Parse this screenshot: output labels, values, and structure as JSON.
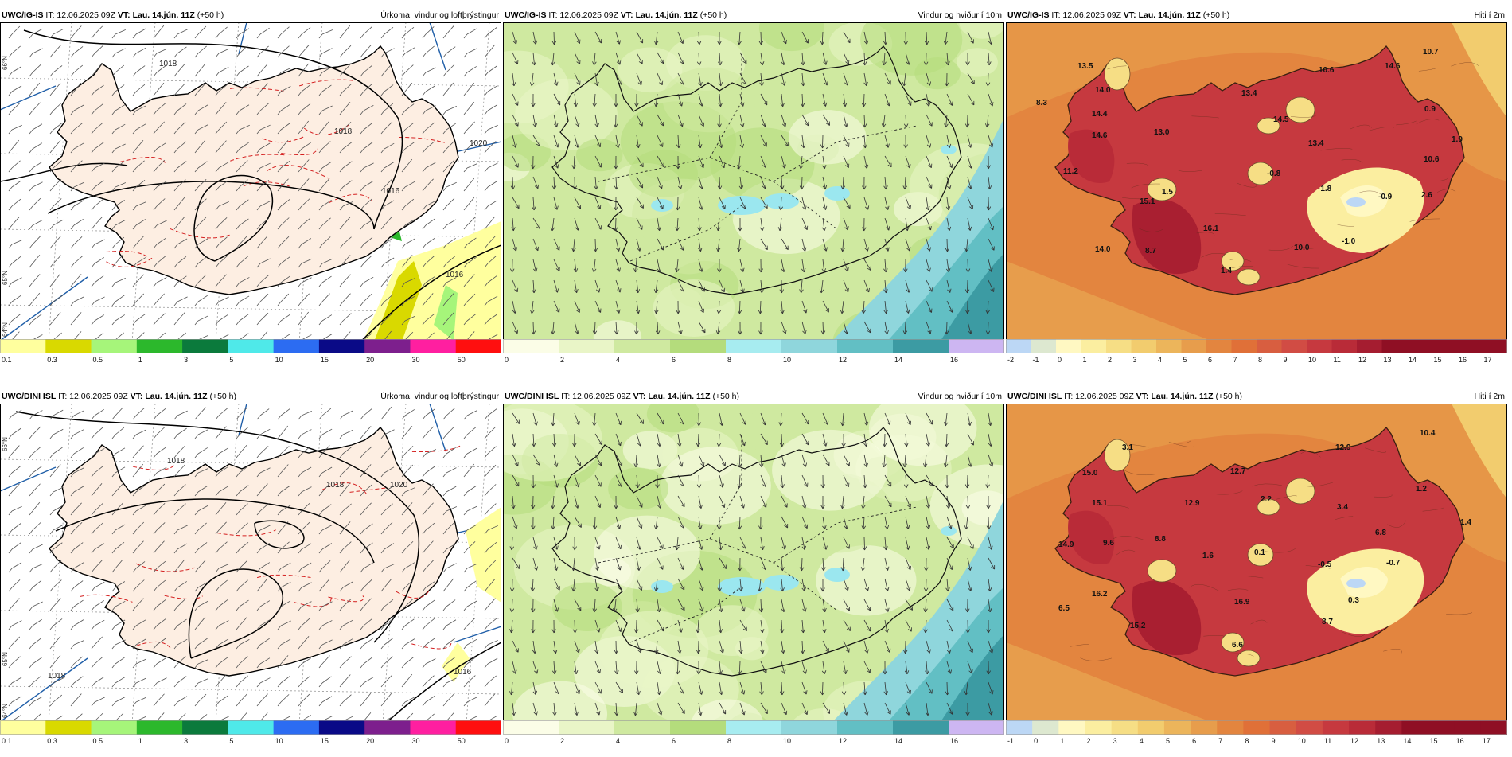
{
  "colors": {
    "precip_scale": [
      "#ffff9e",
      "#d9d900",
      "#a6f57a",
      "#2cb82c",
      "#0b7a3c",
      "#4fe9e9",
      "#2c6cf2",
      "#0a0a87",
      "#7d1f8d",
      "#ff1fa0",
      "#ff0f0f"
    ],
    "wind_scale": [
      "#fbfde7",
      "#e9f5c7",
      "#cfe9a0",
      "#b4dc7c",
      "#a7ecf0",
      "#8fd6dc",
      "#62bfc4",
      "#3c9ba3",
      "#cdb6f2"
    ],
    "temp_scale": [
      "#bcd7f5",
      "#dde8d0",
      "#fff8c2",
      "#fbeea0",
      "#f6de85",
      "#f2cc6e",
      "#ecb55b",
      "#e79d4c",
      "#e3853f",
      "#e07038",
      "#d85e40",
      "#d14c44",
      "#c6393f",
      "#b92b38",
      "#a51d30",
      "#8f0f24"
    ],
    "precip_land": "#fdeee2",
    "isobar": "#000000",
    "temp_dashed": "#d42020"
  },
  "panels": [
    {
      "model": "UWC/IG-IS",
      "it_label": "IT: 12.06.2025 09Z",
      "vt_label": "VT: Lau. 14.jún. 11Z",
      "lead": "(+50 h)",
      "kind": "precip",
      "title": "Úrkoma, vindur og loftþrýstingur",
      "colorbar_ticks": [
        "0.1",
        "0.3",
        "0.5",
        "1",
        "3",
        "5",
        "10",
        "15",
        "20",
        "30",
        "50"
      ],
      "isobar_labels": [
        "1018",
        "1018",
        "1016",
        "1016",
        "1020"
      ],
      "lat_labels": [
        "66°N",
        "65°N",
        "64°N"
      ]
    },
    {
      "model": "UWC/IG-IS",
      "it_label": "IT: 12.06.2025 09Z",
      "vt_label": "VT: Lau. 14.jún. 11Z",
      "lead": "(+50 h)",
      "kind": "wind",
      "title": "Vindur og hviður í 10m",
      "colorbar_ticks": [
        "0",
        "2",
        "4",
        "6",
        "8",
        "10",
        "12",
        "14",
        "16"
      ]
    },
    {
      "model": "UWC/IG-IS",
      "it_label": "IT: 12.06.2025 09Z",
      "vt_label": "VT: Lau. 14.jún. 11Z",
      "lead": "(+50 h)",
      "kind": "temp",
      "title": "Hiti í 2m",
      "colorbar_ticks": [
        "-2",
        "-1",
        "0",
        "1",
        "2",
        "3",
        "4",
        "5",
        "6",
        "7",
        "8",
        "9",
        "10",
        "11",
        "12",
        "13",
        "14",
        "15",
        "16",
        "17"
      ],
      "temp_labels": [
        "13.5",
        "14.0",
        "14.4",
        "8.3",
        "14.6",
        "13.0",
        "11.2",
        "15.1",
        "14.0",
        "8.7",
        "16.1",
        "10.6",
        "13.4",
        "14.5",
        "13.4",
        "10.7",
        "14.6",
        "0.9",
        "1.9",
        "10.6",
        "-1.8",
        "-0.9",
        "2.6",
        "-1.0",
        "10.0",
        "1.4",
        "1.5",
        "-0.8"
      ]
    },
    {
      "model": "UWC/DINI ISL",
      "it_label": "IT: 12.06.2025 09Z",
      "vt_label": "VT: Lau. 14.jún. 11Z",
      "lead": "(+50 h)",
      "kind": "precip",
      "title": "Úrkoma, vindur og loftþrýstingur",
      "colorbar_ticks": [
        "0.1",
        "0.3",
        "0.5",
        "1",
        "3",
        "5",
        "10",
        "15",
        "20",
        "30",
        "50"
      ],
      "isobar_labels": [
        "1018",
        "1018",
        "1020",
        "1018",
        "1016"
      ],
      "lat_labels": [
        "66°N",
        "65°N",
        "64°N"
      ]
    },
    {
      "model": "UWC/DINI ISL",
      "it_label": "IT: 12.06.2025 09Z",
      "vt_label": "VT: Lau. 14.jún. 11Z",
      "lead": "(+50 h)",
      "kind": "wind",
      "title": "Vindur og hviður í 10m",
      "colorbar_ticks": [
        "0",
        "2",
        "4",
        "6",
        "8",
        "10",
        "12",
        "14",
        "16"
      ]
    },
    {
      "model": "UWC/DINI ISL",
      "it_label": "IT: 12.06.2025 09Z",
      "vt_label": "VT: Lau. 14.jún. 11Z",
      "lead": "(+50 h)",
      "kind": "temp",
      "title": "Hiti í 2m",
      "colorbar_ticks": [
        "-1",
        "0",
        "1",
        "2",
        "3",
        "4",
        "5",
        "6",
        "7",
        "8",
        "9",
        "10",
        "11",
        "12",
        "13",
        "14",
        "15",
        "16",
        "17"
      ],
      "temp_labels": [
        "3.1",
        "15.0",
        "15.1",
        "12.9",
        "12.7",
        "2.2",
        "12.9",
        "10.4",
        "1.2",
        "3.4",
        "14.9",
        "9.6",
        "8.8",
        "1.6",
        "0.1",
        "-0.5",
        "-0.7",
        "6.8",
        "1.4",
        "16.2",
        "16.9",
        "6.5",
        "15.2",
        "8.7",
        "0.3",
        "6.6"
      ]
    }
  ]
}
